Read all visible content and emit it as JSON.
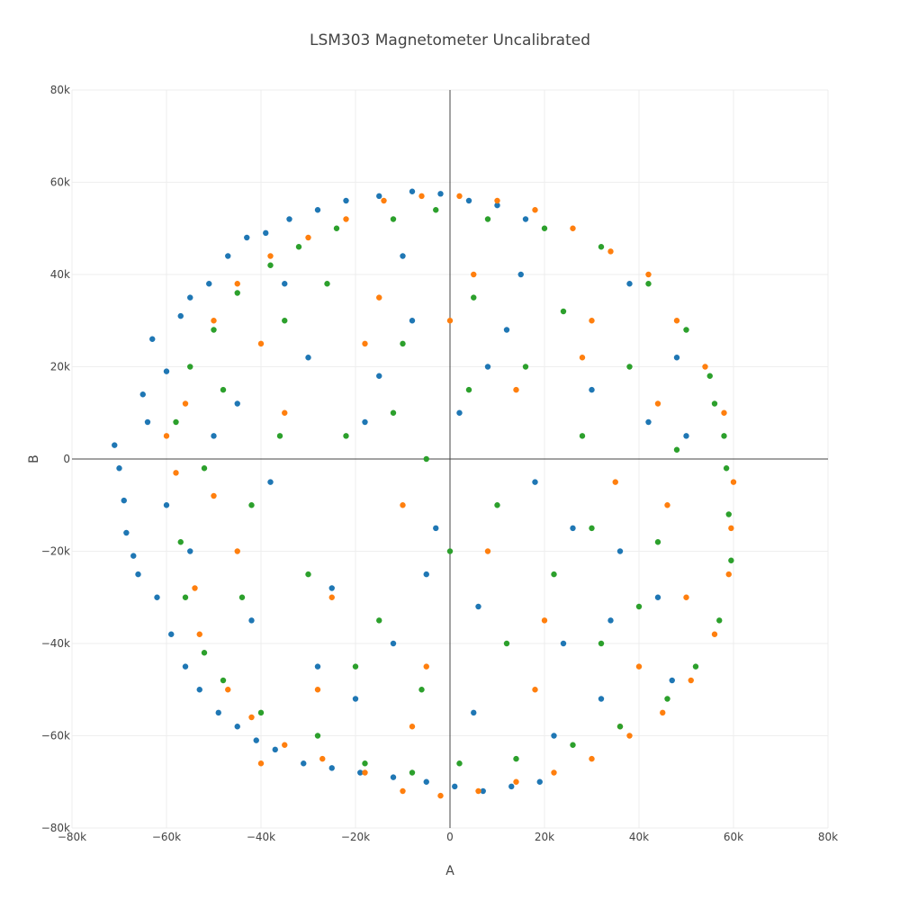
{
  "chart_data": {
    "type": "scatter",
    "title": "LSM303 Magnetometer Uncalibrated",
    "xlabel": "A",
    "ylabel": "B",
    "xlim": [
      -80000,
      80000
    ],
    "ylim": [
      -80000,
      80000
    ],
    "grid": true,
    "legend": "none",
    "x_ticks": [
      -80000,
      -60000,
      -40000,
      -20000,
      0,
      20000,
      40000,
      60000,
      80000
    ],
    "x_tick_labels": [
      "−80k",
      "−60k",
      "−40k",
      "−20k",
      "0",
      "20k",
      "40k",
      "60k",
      "80k"
    ],
    "y_ticks": [
      -80000,
      -60000,
      -40000,
      -20000,
      0,
      20000,
      40000,
      60000,
      80000
    ],
    "y_tick_labels": [
      "−80k",
      "−60k",
      "−40k",
      "−20k",
      "0",
      "20k",
      "40k",
      "60k",
      "80k"
    ],
    "series": [
      {
        "color": "#1f77b4",
        "points": [
          [
            -71000,
            3000
          ],
          [
            -70000,
            -2000
          ],
          [
            -69000,
            -9000
          ],
          [
            -68500,
            -16000
          ],
          [
            -67000,
            -21000
          ],
          [
            -65000,
            14000
          ],
          [
            -64000,
            8000
          ],
          [
            -63000,
            26000
          ],
          [
            -62000,
            -30000
          ],
          [
            -60000,
            19000
          ],
          [
            -59000,
            -38000
          ],
          [
            -57000,
            31000
          ],
          [
            -56000,
            -45000
          ],
          [
            -55000,
            35000
          ],
          [
            -53000,
            -50000
          ],
          [
            -51000,
            38000
          ],
          [
            -49000,
            -55000
          ],
          [
            -47000,
            44000
          ],
          [
            -45000,
            -58000
          ],
          [
            -43000,
            48000
          ],
          [
            -41000,
            -61000
          ],
          [
            -39000,
            49000
          ],
          [
            -37000,
            -63000
          ],
          [
            -34000,
            52000
          ],
          [
            -31000,
            -66000
          ],
          [
            -28000,
            54000
          ],
          [
            -25000,
            -67000
          ],
          [
            -22000,
            56000
          ],
          [
            -19000,
            -68000
          ],
          [
            -15000,
            57000
          ],
          [
            -12000,
            -69000
          ],
          [
            -8000,
            58000
          ],
          [
            -5000,
            -70000
          ],
          [
            -2000,
            57500
          ],
          [
            1000,
            -71000
          ],
          [
            4000,
            56000
          ],
          [
            7000,
            -72000
          ],
          [
            10000,
            55000
          ],
          [
            13000,
            -71000
          ],
          [
            16000,
            52000
          ],
          [
            19000,
            -70000
          ],
          [
            -45000,
            12000
          ],
          [
            -38000,
            -5000
          ],
          [
            -30000,
            22000
          ],
          [
            -25000,
            -28000
          ],
          [
            -18000,
            8000
          ],
          [
            -12000,
            -40000
          ],
          [
            -8000,
            30000
          ],
          [
            -3000,
            -15000
          ],
          [
            2000,
            10000
          ],
          [
            6000,
            -32000
          ],
          [
            12000,
            28000
          ],
          [
            18000,
            -5000
          ],
          [
            24000,
            -40000
          ],
          [
            30000,
            15000
          ],
          [
            36000,
            -20000
          ],
          [
            42000,
            8000
          ],
          [
            47000,
            -48000
          ],
          [
            50000,
            5000
          ],
          [
            -55000,
            -20000
          ],
          [
            -50000,
            5000
          ],
          [
            -42000,
            -35000
          ],
          [
            -35000,
            38000
          ],
          [
            -20000,
            -52000
          ],
          [
            -10000,
            44000
          ],
          [
            5000,
            -55000
          ],
          [
            15000,
            40000
          ],
          [
            22000,
            -60000
          ],
          [
            32000,
            -52000
          ],
          [
            38000,
            38000
          ],
          [
            44000,
            -30000
          ],
          [
            48000,
            22000
          ],
          [
            -28000,
            -45000
          ],
          [
            -15000,
            18000
          ],
          [
            -5000,
            -25000
          ],
          [
            8000,
            20000
          ],
          [
            26000,
            -15000
          ],
          [
            34000,
            -35000
          ],
          [
            -60000,
            -10000
          ],
          [
            -66000,
            -25000
          ]
        ]
      },
      {
        "color": "#ff7f0e",
        "points": [
          [
            -60000,
            5000
          ],
          [
            -58000,
            -3000
          ],
          [
            -56000,
            12000
          ],
          [
            -54000,
            -28000
          ],
          [
            -53000,
            -38000
          ],
          [
            -50000,
            30000
          ],
          [
            -47000,
            -50000
          ],
          [
            -45000,
            38000
          ],
          [
            -42000,
            -56000
          ],
          [
            -40000,
            -66000
          ],
          [
            -38000,
            44000
          ],
          [
            -35000,
            -62000
          ],
          [
            -30000,
            48000
          ],
          [
            -27000,
            -65000
          ],
          [
            -22000,
            52000
          ],
          [
            -18000,
            -68000
          ],
          [
            -14000,
            56000
          ],
          [
            -10000,
            -72000
          ],
          [
            -6000,
            57000
          ],
          [
            -2000,
            -73000
          ],
          [
            2000,
            57000
          ],
          [
            6000,
            -72000
          ],
          [
            10000,
            56000
          ],
          [
            14000,
            -70000
          ],
          [
            18000,
            54000
          ],
          [
            22000,
            -68000
          ],
          [
            26000,
            50000
          ],
          [
            30000,
            -65000
          ],
          [
            34000,
            45000
          ],
          [
            38000,
            -60000
          ],
          [
            42000,
            40000
          ],
          [
            45000,
            -55000
          ],
          [
            48000,
            30000
          ],
          [
            51000,
            -48000
          ],
          [
            54000,
            20000
          ],
          [
            56000,
            -38000
          ],
          [
            58000,
            10000
          ],
          [
            59000,
            -25000
          ],
          [
            60000,
            -5000
          ],
          [
            59500,
            -15000
          ],
          [
            -45000,
            -20000
          ],
          [
            -35000,
            10000
          ],
          [
            -25000,
            -30000
          ],
          [
            -18000,
            25000
          ],
          [
            -10000,
            -10000
          ],
          [
            -5000,
            -45000
          ],
          [
            0,
            30000
          ],
          [
            8000,
            -20000
          ],
          [
            14000,
            15000
          ],
          [
            20000,
            -35000
          ],
          [
            28000,
            22000
          ],
          [
            35000,
            -5000
          ],
          [
            40000,
            -45000
          ],
          [
            44000,
            12000
          ],
          [
            50000,
            -30000
          ],
          [
            -50000,
            -8000
          ],
          [
            -40000,
            25000
          ],
          [
            -28000,
            -50000
          ],
          [
            -15000,
            35000
          ],
          [
            -8000,
            -58000
          ],
          [
            5000,
            40000
          ],
          [
            18000,
            -50000
          ],
          [
            30000,
            30000
          ],
          [
            36000,
            -58000
          ],
          [
            46000,
            -10000
          ]
        ]
      },
      {
        "color": "#2ca02c",
        "points": [
          [
            -58000,
            8000
          ],
          [
            -57000,
            -18000
          ],
          [
            -56000,
            -30000
          ],
          [
            -55000,
            20000
          ],
          [
            -52000,
            -42000
          ],
          [
            -50000,
            28000
          ],
          [
            -48000,
            -48000
          ],
          [
            -45000,
            36000
          ],
          [
            -40000,
            -55000
          ],
          [
            -38000,
            42000
          ],
          [
            -32000,
            46000
          ],
          [
            -28000,
            -60000
          ],
          [
            -24000,
            50000
          ],
          [
            -18000,
            -66000
          ],
          [
            -12000,
            52000
          ],
          [
            -8000,
            -68000
          ],
          [
            -3000,
            54000
          ],
          [
            2000,
            -66000
          ],
          [
            8000,
            52000
          ],
          [
            14000,
            -65000
          ],
          [
            20000,
            50000
          ],
          [
            26000,
            -62000
          ],
          [
            32000,
            46000
          ],
          [
            36000,
            -58000
          ],
          [
            42000,
            38000
          ],
          [
            46000,
            -52000
          ],
          [
            50000,
            28000
          ],
          [
            52000,
            -45000
          ],
          [
            55000,
            18000
          ],
          [
            57000,
            -35000
          ],
          [
            58000,
            5000
          ],
          [
            59000,
            -12000
          ],
          [
            59500,
            -22000
          ],
          [
            58500,
            -2000
          ],
          [
            56000,
            12000
          ],
          [
            -48000,
            15000
          ],
          [
            -42000,
            -10000
          ],
          [
            -35000,
            30000
          ],
          [
            -30000,
            -25000
          ],
          [
            -22000,
            5000
          ],
          [
            -15000,
            -35000
          ],
          [
            -10000,
            25000
          ],
          [
            -5000,
            0
          ],
          [
            0,
            -20000
          ],
          [
            5000,
            35000
          ],
          [
            10000,
            -10000
          ],
          [
            16000,
            20000
          ],
          [
            22000,
            -25000
          ],
          [
            28000,
            5000
          ],
          [
            32000,
            -40000
          ],
          [
            38000,
            20000
          ],
          [
            44000,
            -18000
          ],
          [
            48000,
            2000
          ],
          [
            -52000,
            -2000
          ],
          [
            -44000,
            -30000
          ],
          [
            -36000,
            5000
          ],
          [
            -26000,
            38000
          ],
          [
            -20000,
            -45000
          ],
          [
            -12000,
            10000
          ],
          [
            -6000,
            -50000
          ],
          [
            4000,
            15000
          ],
          [
            12000,
            -40000
          ],
          [
            24000,
            32000
          ],
          [
            30000,
            -15000
          ],
          [
            40000,
            -32000
          ]
        ]
      }
    ]
  }
}
